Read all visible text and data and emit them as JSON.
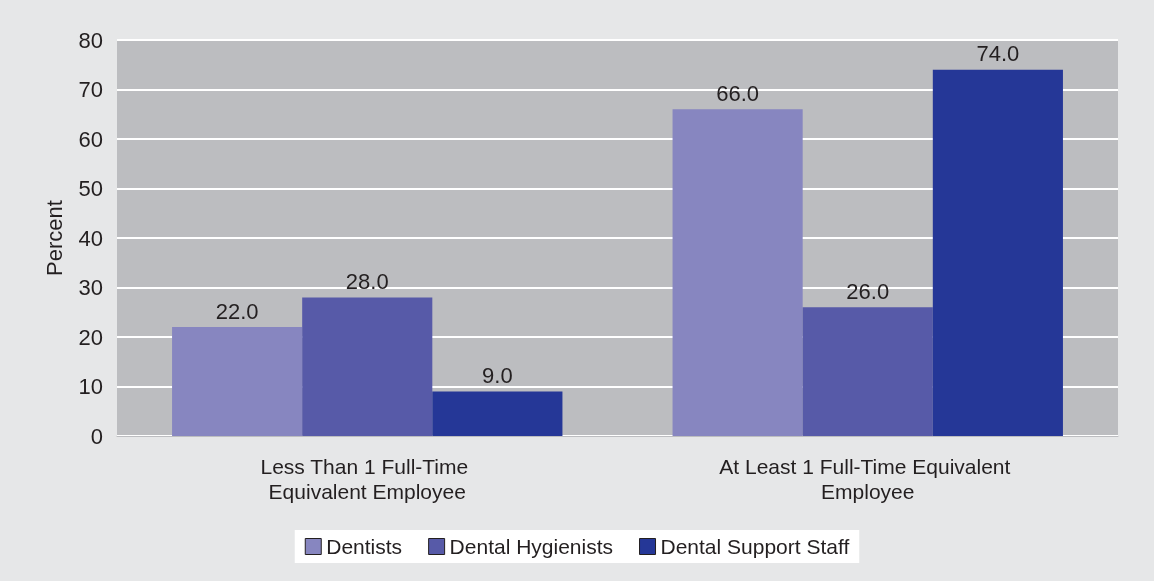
{
  "chart_data": {
    "type": "bar",
    "ylabel": "Percent",
    "categories": [
      "Less Than 1 Full-Time Equivalent Employee",
      "At Least 1 Full-Time Equivalent Employee"
    ],
    "series": [
      {
        "name": "Dentists",
        "color": "#8786c0",
        "values": [
          22,
          66
        ],
        "value_labels": [
          "22.0",
          "66.0"
        ]
      },
      {
        "name": "Dental Hygienists",
        "color": "#575aa8",
        "values": [
          28,
          26
        ],
        "value_labels": [
          "28.0",
          "26.0"
        ]
      },
      {
        "name": "Dental Support Staff",
        "color": "#253797",
        "values": [
          9,
          74
        ],
        "value_labels": [
          "9.0",
          "74.0"
        ]
      }
    ],
    "ylim": [
      0,
      80
    ],
    "yticks": [
      0,
      10,
      20,
      30,
      40,
      50,
      60,
      70,
      80
    ],
    "grid": "y",
    "legend": "bottom"
  }
}
